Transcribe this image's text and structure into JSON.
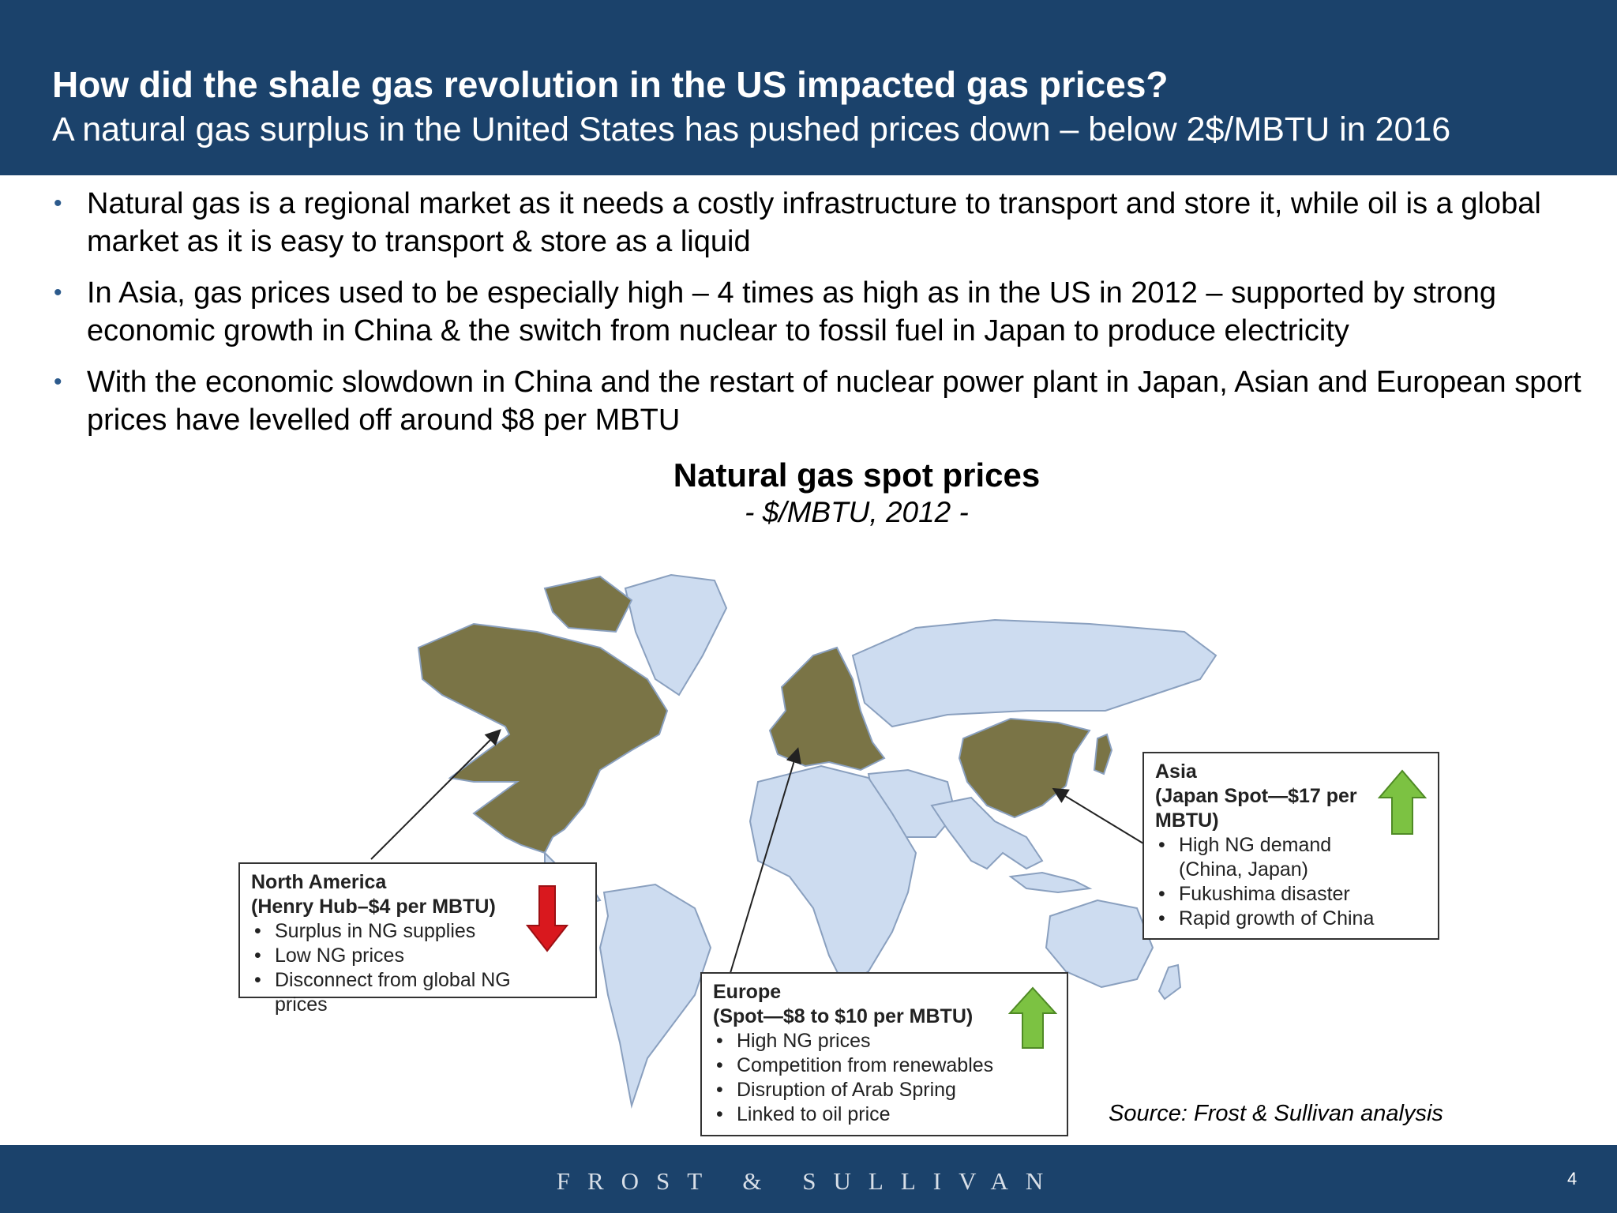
{
  "header": {
    "title": "How did the shale gas revolution in the US impacted gas prices?",
    "subtitle": "A natural gas surplus in the United States has pushed prices down – below 2$/MBTU in 2016"
  },
  "bullets": [
    "Natural gas is a regional market as it needs a costly infrastructure to transport and store it, while oil is a global market as it is easy to transport & store as a liquid",
    "In Asia, gas prices used to be especially high – 4 times as high as in the US in 2012 – supported by strong economic growth in China & the switch from nuclear to fossil fuel in Japan to produce electricity",
    "With the economic slowdown in China and the restart of nuclear power plant in Japan, Asian and European sport prices have levelled off around $8 per MBTU"
  ],
  "chart": {
    "title": "Natural gas spot prices",
    "subtitle": "- $/MBTU, 2012 -"
  },
  "callouts": {
    "north_america": {
      "region": "North America",
      "price": "(Henry Hub–$4 per MBTU)",
      "items": [
        "Surplus in NG supplies",
        "Low NG prices",
        "Disconnect from global NG prices"
      ],
      "trend": "down"
    },
    "europe": {
      "region": "Europe",
      "price": "(Spot—$8 to $10 per MBTU)",
      "items": [
        "High NG prices",
        "Competition from renewables",
        "Disruption of Arab Spring",
        "Linked to oil price"
      ],
      "trend": "up"
    },
    "asia": {
      "region": "Asia",
      "price_line1": "(Japan Spot—$17 per",
      "price_line2": "MBTU)",
      "items": [
        "High NG demand",
        "(China, Japan)",
        "Fukushima disaster",
        "Rapid growth of China"
      ],
      "trend": "up"
    }
  },
  "colors": {
    "header_bg": "#1b426b",
    "highlight_region": "#7a7446",
    "map_region": "#cddcf0",
    "arrow_up": "#7cc242",
    "arrow_down": "#d9181e"
  },
  "source": "Source: Frost & Sullivan analysis",
  "footer": {
    "brand": "FROST & SULLIVAN",
    "page_number": "4"
  }
}
